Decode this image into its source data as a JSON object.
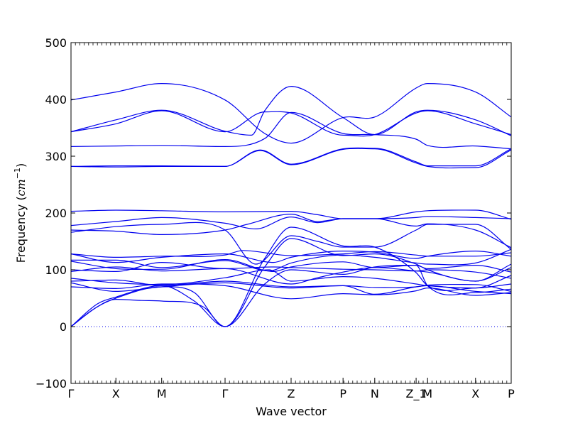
{
  "chart_data": {
    "type": "line",
    "title": "",
    "xlabel": "Wave vector",
    "ylabel": {
      "prefix": "Frequency (",
      "unit_base": "cm",
      "unit_exp": "−1",
      "suffix": ")"
    },
    "ylim": [
      -100,
      500
    ],
    "yticks": [
      "−100",
      "0",
      "100",
      "200",
      "300",
      "400",
      "500"
    ],
    "ytick_values": [
      -100,
      0,
      100,
      200,
      300,
      400,
      500
    ],
    "xlim": [
      0,
      10
    ],
    "xticks": [
      {
        "label": "Γ",
        "pos": 0
      },
      {
        "label": "X",
        "pos": 1.02
      },
      {
        "label": "M",
        "pos": 2.06
      },
      {
        "label": "Γ",
        "pos": 3.5
      },
      {
        "label": "Z",
        "pos": 5.0
      },
      {
        "label": "P",
        "pos": 6.18
      },
      {
        "label": "N",
        "pos": 6.9
      },
      {
        "label": "Z_1",
        "pos": 7.84
      },
      {
        "label": "M",
        "pos": 8.1
      },
      {
        "label": "X",
        "pos": 9.19
      },
      {
        "label": "P",
        "pos": 10
      }
    ],
    "zero_line": true,
    "line_color": "#0000ee",
    "zero_line_color": "#0000ee",
    "series": [
      {
        "x": [
          0,
          1.02,
          2.06,
          3.5,
          4.4,
          5.0,
          6.18,
          6.9,
          7.84,
          8.1,
          9.19,
          10
        ],
        "y": [
          399,
          413,
          428,
          399,
          340,
          323,
          368,
          369,
          420,
          428,
          413,
          369
        ]
      },
      {
        "x": [
          0,
          1.02,
          2.06,
          3.5,
          4.1,
          4.4,
          5.0,
          6.18,
          6.9,
          7.84,
          8.1,
          9.19,
          10
        ],
        "y": [
          343,
          364,
          381,
          344,
          337,
          380,
          423,
          368,
          338,
          378,
          381,
          364,
          336
        ]
      },
      {
        "x": [
          0,
          1.02,
          2.06,
          3.5,
          4.4,
          5.0,
          6.18,
          6.9,
          7.84,
          8.1,
          9.19,
          10
        ],
        "y": [
          343,
          357,
          380,
          343,
          378,
          376,
          337,
          338,
          376,
          380,
          357,
          338
        ]
      },
      {
        "x": [
          0,
          1.02,
          2.06,
          3.5,
          4.4,
          5.0,
          6.18,
          6.9,
          7.84,
          8.1,
          9.19,
          10
        ],
        "y": [
          317,
          318,
          319,
          317,
          331,
          377,
          340,
          338,
          330,
          319,
          318,
          313
        ]
      },
      {
        "x": [
          0,
          1.02,
          2.06,
          3.5,
          4.3,
          5.0,
          6.18,
          6.9,
          7.84,
          8.1,
          9.19,
          10
        ],
        "y": [
          282,
          283,
          283,
          282,
          311,
          286,
          313,
          314,
          290,
          283,
          283,
          313
        ]
      },
      {
        "x": [
          0,
          1.02,
          2.06,
          3.5,
          4.3,
          5.0,
          6.18,
          6.9,
          7.84,
          8.1,
          9.19,
          10
        ],
        "y": [
          282,
          281,
          282,
          282,
          310,
          285,
          312,
          313,
          288,
          282,
          280,
          311
        ]
      },
      {
        "x": [
          0,
          1.02,
          2.06,
          3.5,
          5.0,
          5.6,
          6.18,
          6.9,
          7.84,
          8.1,
          9.19,
          10
        ],
        "y": [
          203,
          205,
          204,
          202,
          203,
          197,
          190,
          190,
          202,
          204,
          205,
          189
        ]
      },
      {
        "x": [
          0,
          1.02,
          2.06,
          3.5,
          4.2,
          5.0,
          5.6,
          6.18,
          6.9,
          7.84,
          8.1,
          9.19,
          10
        ],
        "y": [
          178,
          185,
          192,
          182,
          172,
          193,
          183,
          190,
          190,
          177,
          181,
          170,
          139
        ]
      },
      {
        "x": [
          0,
          1.02,
          2.06,
          3.5,
          4.0,
          5.0,
          5.6,
          6.18,
          6.9,
          7.84,
          8.1,
          9.19,
          10
        ],
        "y": [
          170,
          168,
          162,
          170,
          180,
          198,
          185,
          190,
          190,
          192,
          194,
          192,
          190
        ]
      },
      {
        "x": [
          0,
          1.02,
          2.06,
          3.5,
          4.2,
          5.0,
          5.6,
          6.18,
          6.9,
          7.84,
          8.1,
          9.19,
          10
        ],
        "y": [
          166,
          176,
          180,
          170,
          110,
          160,
          150,
          140,
          140,
          170,
          180,
          180,
          136
        ]
      },
      {
        "x": [
          0,
          1.02,
          2.06,
          3.5,
          3.9,
          5.0,
          6.18,
          6.9,
          7.84,
          8.1,
          9.19,
          10
        ],
        "y": [
          128,
          122,
          124,
          126,
          134,
          125,
          128,
          132,
          126,
          124,
          124,
          130
        ]
      },
      {
        "x": [
          0,
          1.02,
          2.06,
          3.5,
          4.6,
          5.0,
          6.18,
          6.9,
          7.84,
          8.1,
          9.19,
          10
        ],
        "y": [
          128,
          113,
          122,
          128,
          113,
          122,
          133,
          131,
          120,
          124,
          133,
          124
        ]
      },
      {
        "x": [
          0,
          1.02,
          2.06,
          3.5,
          4.5,
          5.0,
          6.18,
          6.9,
          7.84,
          8.1,
          9.19,
          10
        ],
        "y": [
          117,
          117,
          104,
          116,
          98,
          112,
          126,
          122,
          112,
          110,
          112,
          136
        ]
      },
      {
        "x": [
          0,
          1.02,
          2.06,
          3.5,
          4.6,
          5.0,
          6.18,
          6.9,
          7.84,
          8.1,
          9.19,
          10
        ],
        "y": [
          115,
          102,
          101,
          118,
          97,
          105,
          114,
          104,
          108,
          102,
          108,
          96
        ]
      },
      {
        "x": [
          0,
          1.02,
          2.06,
          3.5,
          4.6,
          5.0,
          6.18,
          6.9,
          7.84,
          8.1,
          9.19,
          10
        ],
        "y": [
          100,
          97,
          113,
          102,
          105,
          104,
          101,
          100,
          98,
          100,
          96,
          85
        ]
      },
      {
        "x": [
          0,
          1.02,
          2.06,
          3.5,
          5.0,
          5.6,
          6.18,
          6.9,
          7.84,
          8.1,
          9.19,
          10
        ],
        "y": [
          97,
          105,
          98,
          102,
          75,
          86,
          96,
          104,
          98,
          96,
          80,
          104
        ]
      },
      {
        "x": [
          0,
          1.02,
          2.06,
          3.5,
          4.5,
          5.0,
          6.18,
          6.9,
          7.84,
          8.1,
          9.19,
          10
        ],
        "y": [
          85,
          77,
          74,
          86,
          100,
          80,
          88,
          85,
          75,
          72,
          68,
          75
        ]
      },
      {
        "x": [
          0,
          1.02,
          2.06,
          3.5,
          5.0,
          6.18,
          6.9,
          7.84,
          8.1,
          9.19,
          10
        ],
        "y": [
          80,
          82,
          72,
          80,
          70,
          72,
          69,
          70,
          73,
          74,
          62
        ]
      },
      {
        "x": [
          0,
          1.02,
          2.06,
          3.5,
          5.0,
          6.18,
          6.9,
          7.84,
          8.1,
          9.19,
          10
        ],
        "y": [
          77,
          62,
          70,
          77,
          68,
          72,
          57,
          70,
          72,
          62,
          58
        ]
      },
      {
        "x": [
          0,
          1.02,
          2.06,
          3.5,
          5.0,
          6.18,
          6.9,
          7.84,
          8.1,
          9.19,
          10
        ],
        "y": [
          70,
          67,
          75,
          72,
          49,
          58,
          56,
          63,
          68,
          55,
          60
        ]
      },
      {
        "x": [
          0,
          0.6,
          1.02,
          2.06,
          2.8,
          3.5,
          4.4,
          5.0,
          6.18,
          6.9,
          7.84,
          8.1,
          9.19,
          10
        ],
        "y": [
          0,
          40,
          52,
          72,
          45,
          0,
          120,
          175,
          142,
          140,
          95,
          72,
          68,
          90
        ]
      },
      {
        "x": [
          0,
          0.6,
          1.02,
          2.06,
          2.8,
          3.5,
          4.4,
          5.0,
          6.18,
          6.9,
          7.84,
          8.1,
          9.19,
          10
        ],
        "y": [
          0,
          35,
          50,
          70,
          60,
          0,
          105,
          155,
          125,
          128,
          110,
          100,
          80,
          110
        ]
      },
      {
        "x": [
          0,
          0.5,
          1.02,
          1.6,
          2.06,
          3.0,
          3.5,
          4.4,
          5.0,
          6.18,
          6.9,
          7.84,
          8.1,
          9.19,
          10
        ],
        "y": [
          0,
          30,
          48,
          46,
          45,
          35,
          0,
          75,
          100,
          92,
          105,
          108,
          72,
          60,
          66
        ]
      }
    ]
  }
}
